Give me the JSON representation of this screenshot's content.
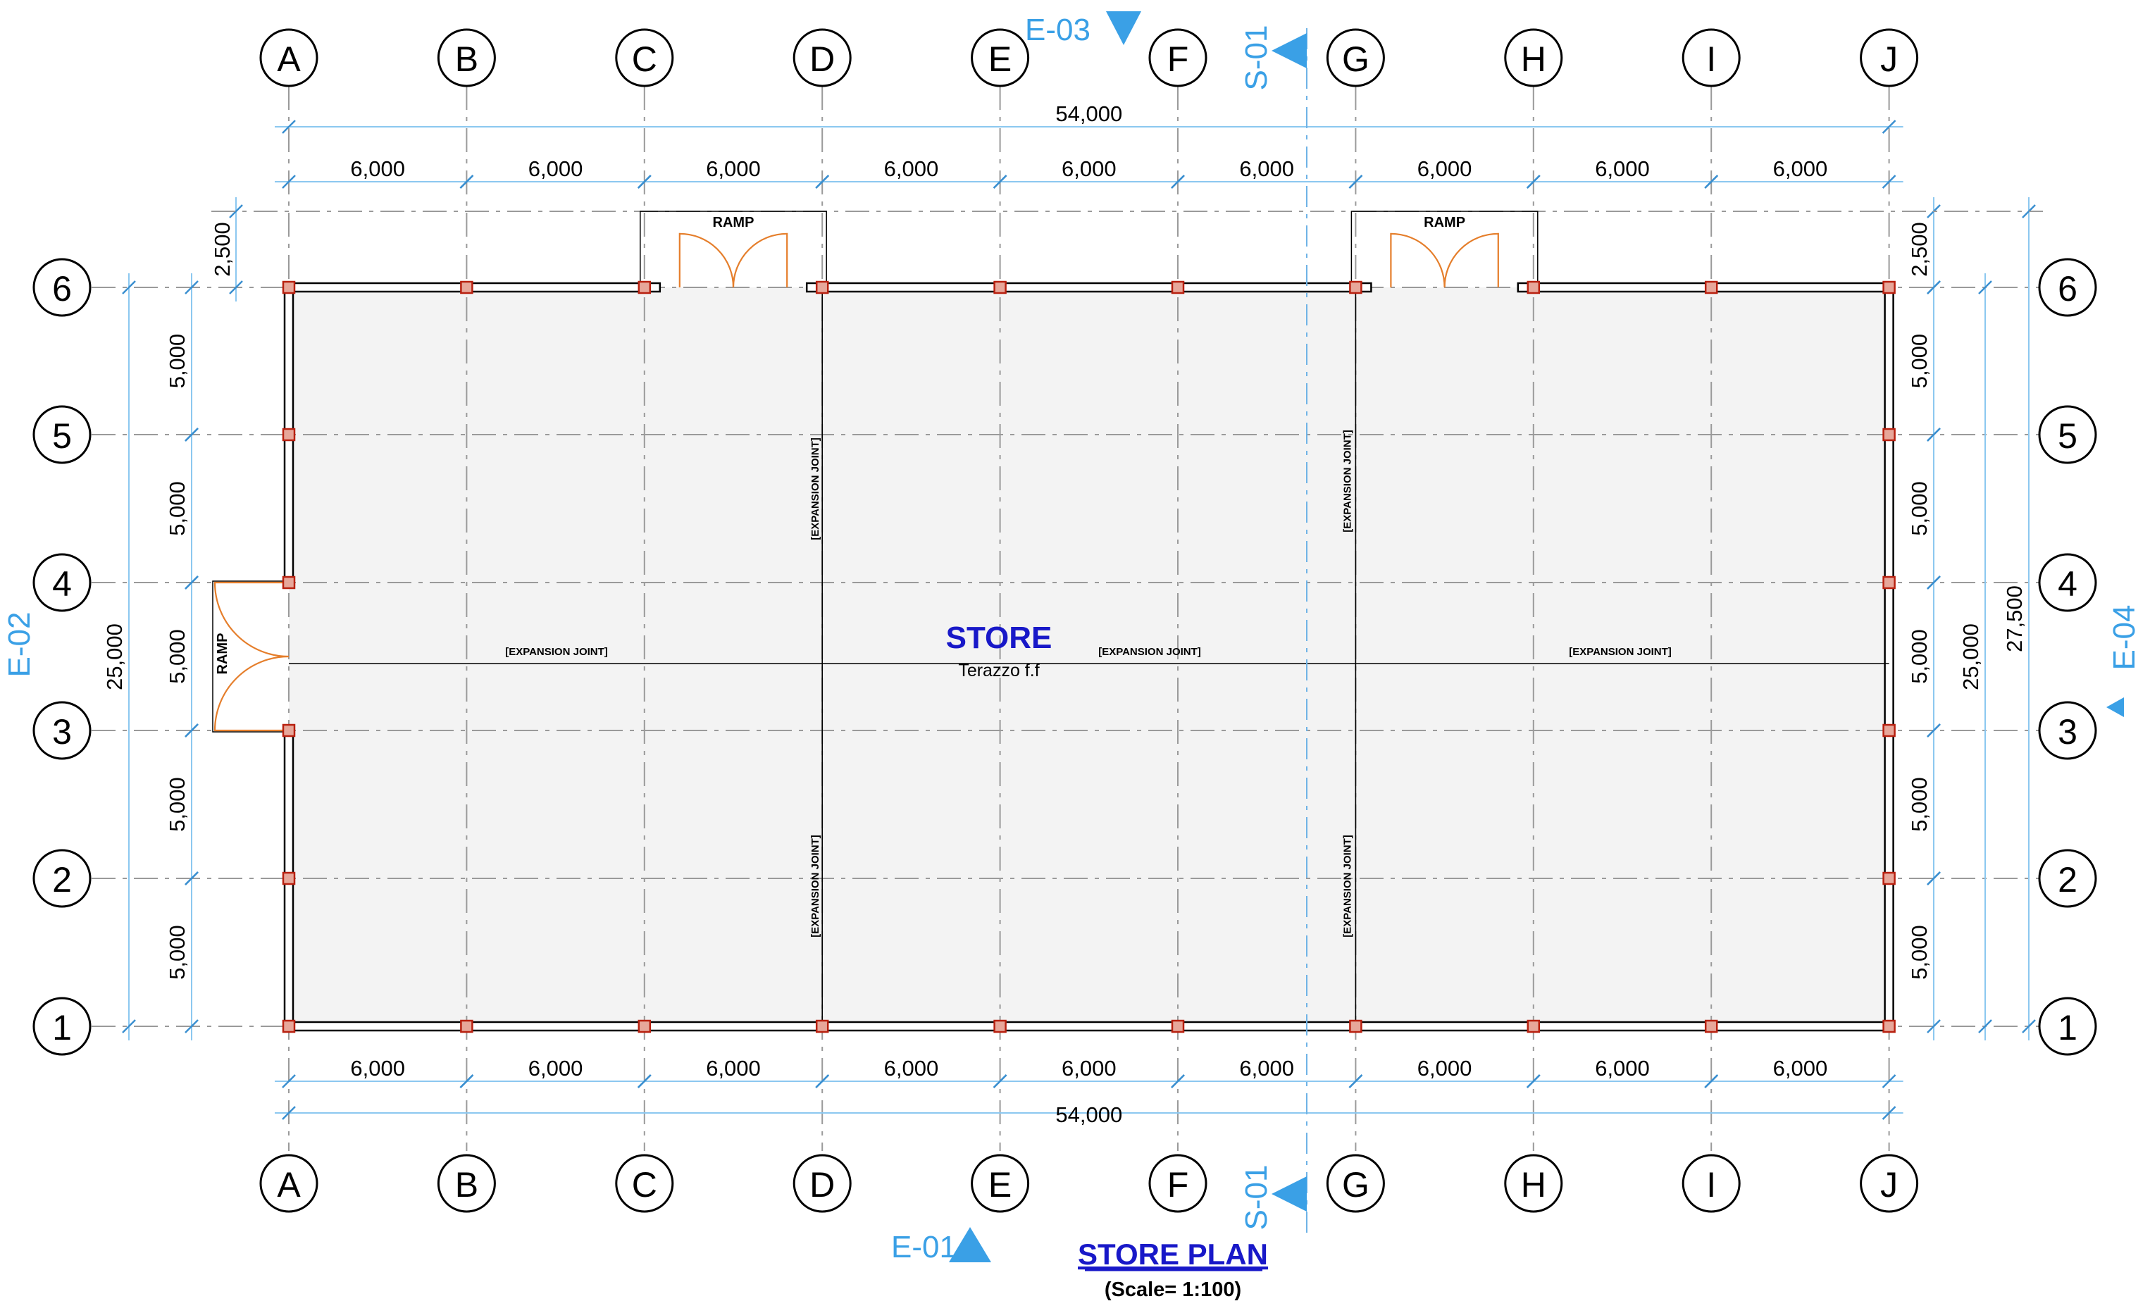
{
  "grid_x": [
    "A",
    "B",
    "C",
    "D",
    "E",
    "F",
    "G",
    "H",
    "I",
    "J"
  ],
  "grid_y": [
    "1",
    "2",
    "3",
    "4",
    "5",
    "6"
  ],
  "dims": {
    "overall_x": "54,000",
    "bays_x": [
      "6,000",
      "6,000",
      "6,000",
      "6,000",
      "6,000",
      "6,000",
      "6,000",
      "6,000",
      "6,000"
    ],
    "bays_y_left": [
      "5,000",
      "5,000",
      "5,000",
      "5,000",
      "5,000"
    ],
    "bays_y_right": [
      "5,000",
      "5,000",
      "5,000",
      "5,000",
      "5,000"
    ],
    "overall_y": "25,000",
    "overall_y_right": "27,500",
    "ramp_depth": "2,500"
  },
  "room": {
    "name": "STORE",
    "finish": "Terazzo f.f"
  },
  "labels": {
    "ramp": "RAMP",
    "expansion_joint": "[EXPANSION JOINT]"
  },
  "markers": {
    "elev_top": "E-03",
    "elev_bottom": "E-01",
    "elev_right": "E-04",
    "elev_left": "E-02",
    "section_top": "S-01",
    "section_bottom": "S-01"
  },
  "title": {
    "main": "STORE PLAN",
    "scale": "(Scale= 1:100)"
  },
  "colors": {
    "dim": "#3aa0e6",
    "door": "#e57e2b",
    "column": "#b8200f",
    "title": "#1818c8"
  }
}
